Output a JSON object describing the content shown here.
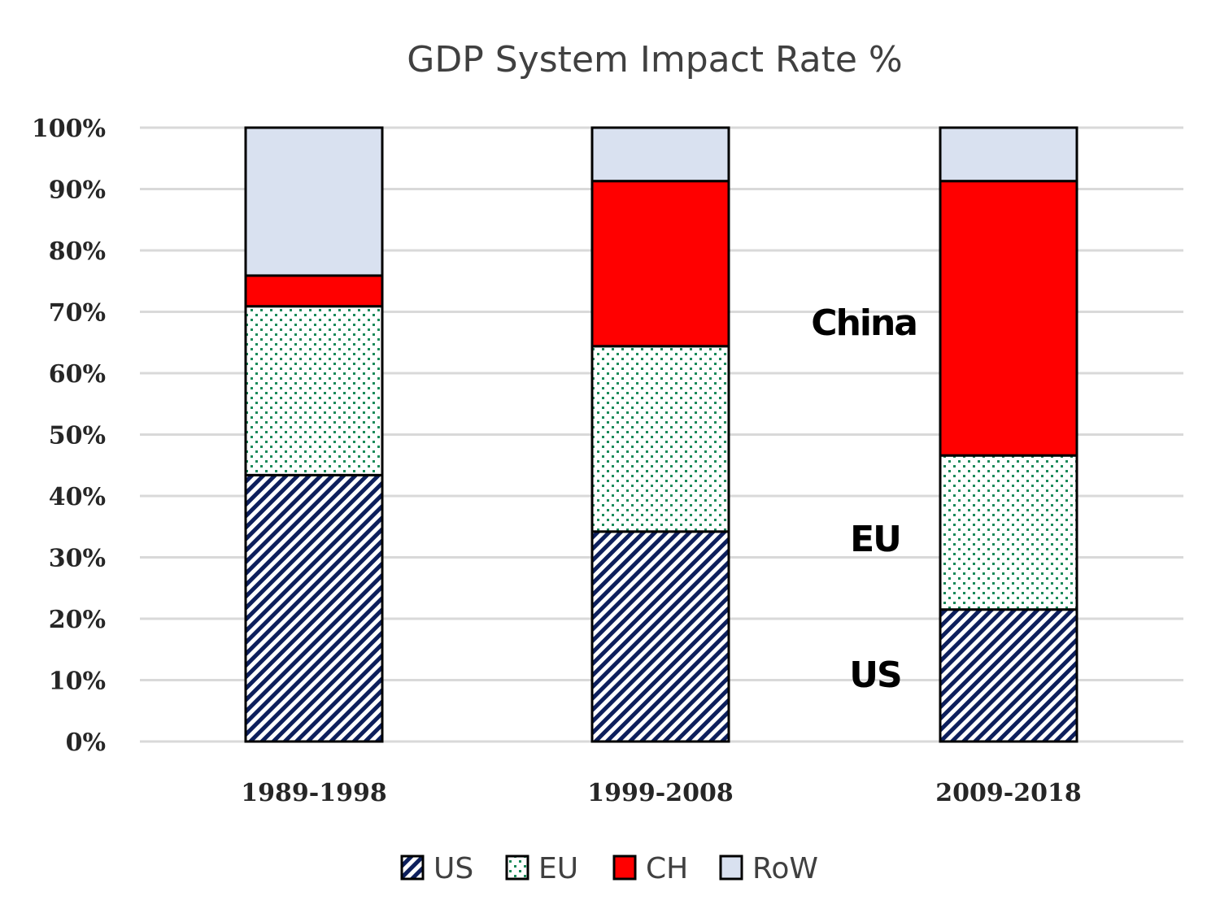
{
  "chart_data": {
    "type": "bar",
    "stacked": true,
    "title": "GDP System Impact Rate %",
    "xlabel": "",
    "ylabel": "",
    "ylim": [
      0,
      100
    ],
    "yticks": [
      "0%",
      "10%",
      "20%",
      "30%",
      "40%",
      "50%",
      "60%",
      "70%",
      "80%",
      "90%",
      "100%"
    ],
    "grid": true,
    "categories": [
      "1989-1998",
      "1999-2008",
      "2009-2018"
    ],
    "series": [
      {
        "name": "US",
        "pattern": "diagonal-hatch",
        "color": "#0d1f5c",
        "values": [
          43.4,
          34.2,
          21.5
        ]
      },
      {
        "name": "EU",
        "pattern": "dots",
        "color": "#1a8a5a",
        "values": [
          27.5,
          30.2,
          25.1
        ]
      },
      {
        "name": "CH",
        "pattern": "solid",
        "color": "#ff0000",
        "values": [
          5.0,
          26.9,
          44.7
        ]
      },
      {
        "name": "RoW",
        "pattern": "solid",
        "color": "#d9e1f0",
        "values": [
          24.1,
          8.7,
          8.7
        ]
      }
    ],
    "legend_position": "bottom",
    "annotations": [
      {
        "text": "China",
        "near_series": "CH",
        "category": "2009-2018"
      },
      {
        "text": "EU",
        "near_series": "EU",
        "category": "2009-2018"
      },
      {
        "text": "US",
        "near_series": "US",
        "category": "2009-2018"
      }
    ]
  }
}
